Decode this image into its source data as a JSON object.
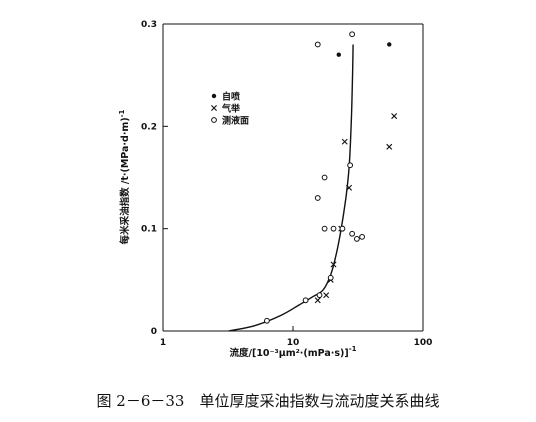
{
  "caption": "图 2－6－33　单位厚度采油指数与流动度关系曲线",
  "chart_data": {
    "type": "scatter",
    "title": "",
    "xlabel": "流度/[10⁻³μm²·(mPa·s)]",
    "xlabel_exponent": "-1",
    "ylabel": "每米采油指数 /t·(MPa·d·m)",
    "ylabel_exponent": "-1",
    "x_scale": "log",
    "xlim": [
      1,
      100
    ],
    "ylim": [
      0,
      0.3
    ],
    "x_ticks": [
      {
        "value": 1,
        "label": "1"
      },
      {
        "value": 10,
        "label": "10"
      },
      {
        "value": 100,
        "label": "100"
      }
    ],
    "y_ticks": [
      {
        "value": 0,
        "label": "0"
      },
      {
        "value": 0.1,
        "label": "0.1"
      },
      {
        "value": 0.2,
        "label": "0.2"
      },
      {
        "value": 0.3,
        "label": "0.3"
      }
    ],
    "grid": false,
    "legend_position": "upper-left",
    "series": [
      {
        "name": "自喷",
        "marker": "dot",
        "points": [
          {
            "x": 22.5,
            "y": 0.27
          },
          {
            "x": 55,
            "y": 0.28
          }
        ]
      },
      {
        "name": "气举",
        "marker": "x",
        "points": [
          {
            "x": 15.5,
            "y": 0.03
          },
          {
            "x": 18,
            "y": 0.035
          },
          {
            "x": 19.5,
            "y": 0.05
          },
          {
            "x": 20.5,
            "y": 0.065
          },
          {
            "x": 23.5,
            "y": 0.1
          },
          {
            "x": 27,
            "y": 0.14
          },
          {
            "x": 25,
            "y": 0.185
          },
          {
            "x": 55,
            "y": 0.18
          },
          {
            "x": 60,
            "y": 0.21
          }
        ]
      },
      {
        "name": "测液面",
        "marker": "circle",
        "points": [
          {
            "x": 6.3,
            "y": 0.01
          },
          {
            "x": 12.5,
            "y": 0.03
          },
          {
            "x": 16,
            "y": 0.035
          },
          {
            "x": 19.5,
            "y": 0.052
          },
          {
            "x": 17.5,
            "y": 0.1
          },
          {
            "x": 20.5,
            "y": 0.1
          },
          {
            "x": 24,
            "y": 0.1
          },
          {
            "x": 28.5,
            "y": 0.095
          },
          {
            "x": 31,
            "y": 0.09
          },
          {
            "x": 34,
            "y": 0.092
          },
          {
            "x": 15.5,
            "y": 0.13
          },
          {
            "x": 17.5,
            "y": 0.15
          },
          {
            "x": 27.5,
            "y": 0.162
          },
          {
            "x": 15.5,
            "y": 0.28
          },
          {
            "x": 28.5,
            "y": 0.29
          }
        ]
      }
    ],
    "curve": {
      "points": [
        {
          "x": 3.2,
          "y": 0.0
        },
        {
          "x": 5,
          "y": 0.005
        },
        {
          "x": 8,
          "y": 0.015
        },
        {
          "x": 11,
          "y": 0.025
        },
        {
          "x": 14,
          "y": 0.033
        },
        {
          "x": 17,
          "y": 0.04
        },
        {
          "x": 19.5,
          "y": 0.055
        },
        {
          "x": 21.5,
          "y": 0.075
        },
        {
          "x": 23.5,
          "y": 0.1
        },
        {
          "x": 25.5,
          "y": 0.13
        },
        {
          "x": 27,
          "y": 0.16
        },
        {
          "x": 28,
          "y": 0.2
        },
        {
          "x": 28.6,
          "y": 0.24
        },
        {
          "x": 29,
          "y": 0.28
        }
      ]
    }
  }
}
